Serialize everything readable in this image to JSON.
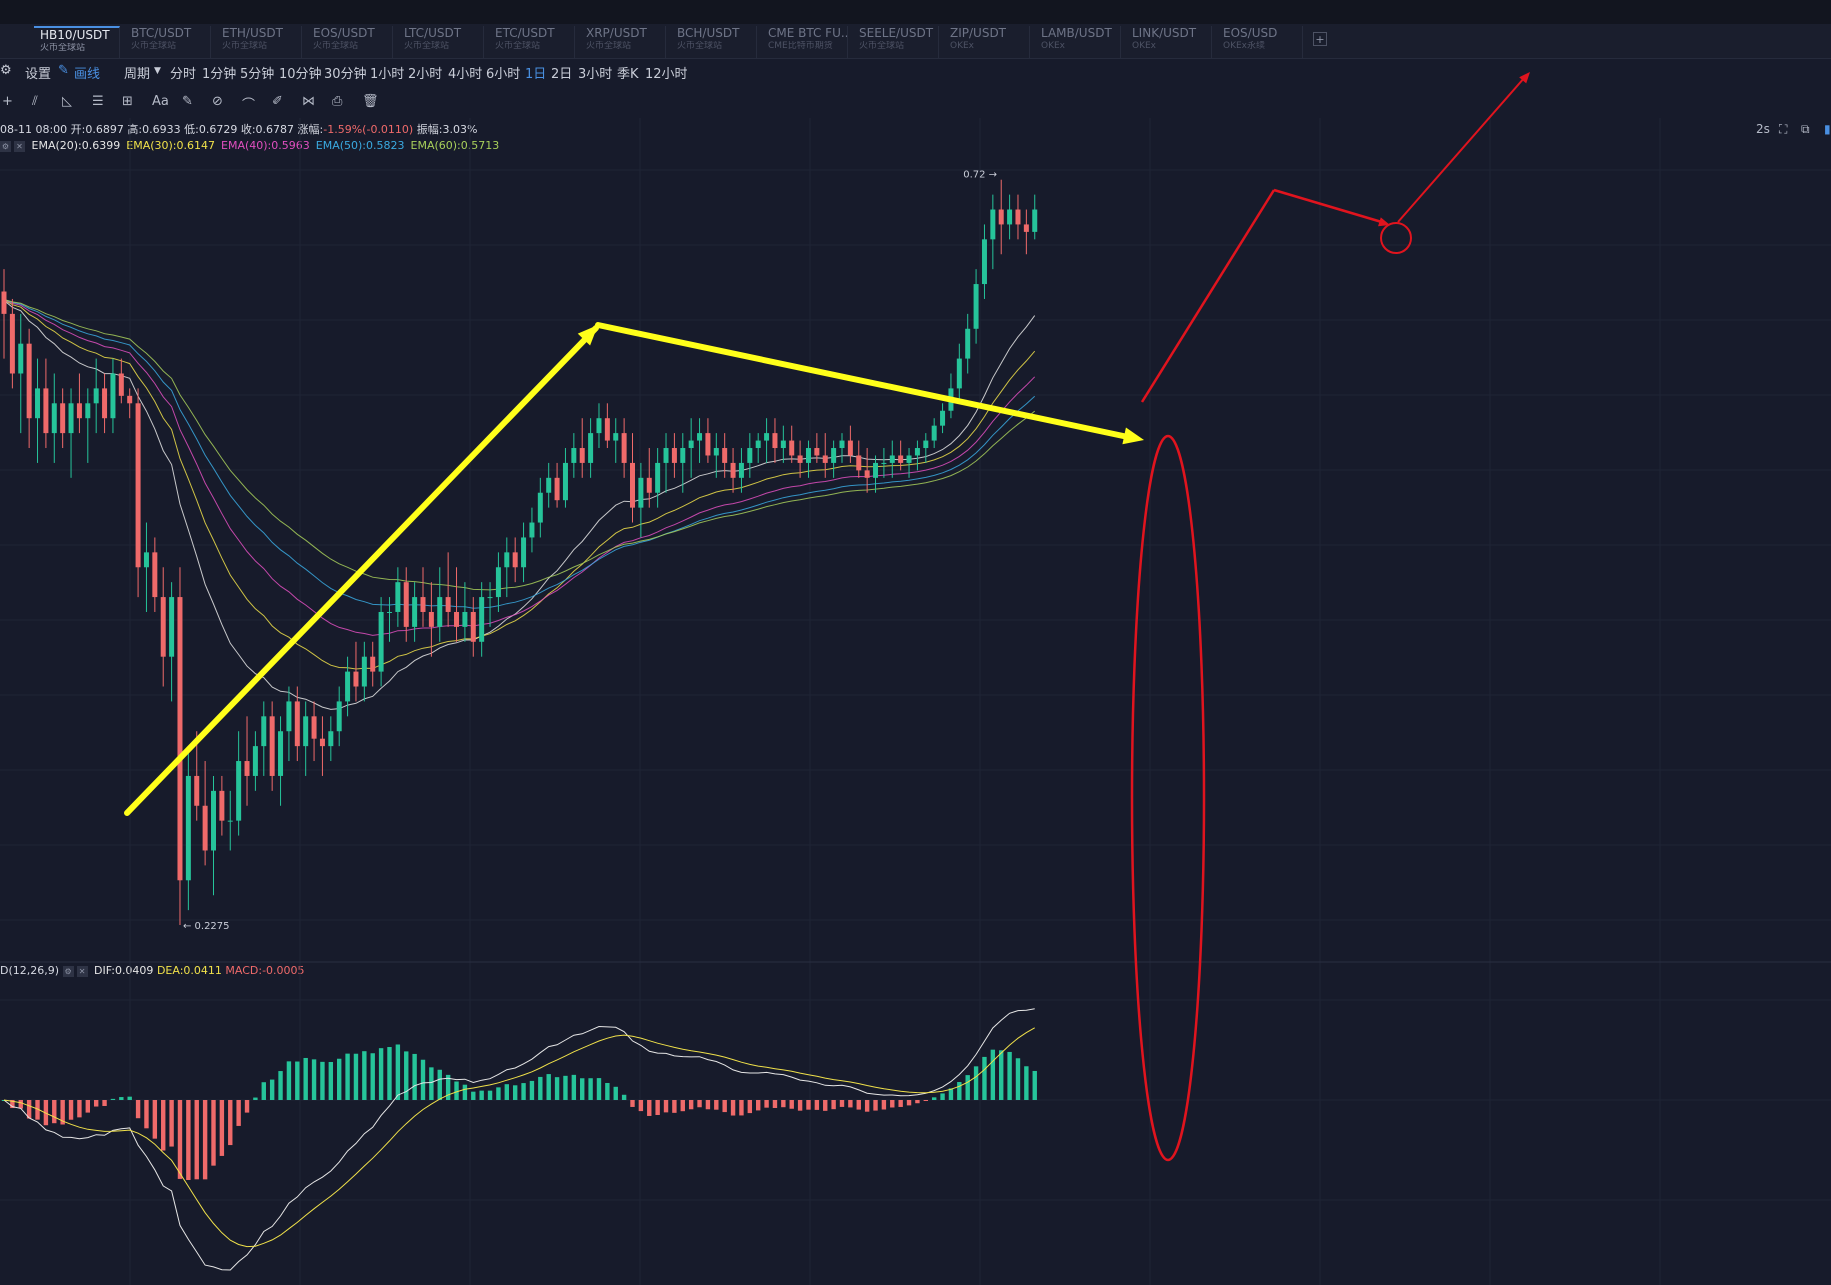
{
  "tabs": [
    {
      "symbol": "HB10/USDT",
      "source": "火币全球站",
      "active": true
    },
    {
      "symbol": "BTC/USDT",
      "source": "火币全球站",
      "active": false
    },
    {
      "symbol": "ETH/USDT",
      "source": "火币全球站",
      "active": false
    },
    {
      "symbol": "EOS/USDT",
      "source": "火币全球站",
      "active": false
    },
    {
      "symbol": "LTC/USDT",
      "source": "火币全球站",
      "active": false
    },
    {
      "symbol": "ETC/USDT",
      "source": "火币全球站",
      "active": false
    },
    {
      "symbol": "XRP/USDT",
      "source": "火币全球站",
      "active": false
    },
    {
      "symbol": "BCH/USDT",
      "source": "火币全球站",
      "active": false
    },
    {
      "symbol": "CME BTC FU...",
      "source": "CME比特币期货",
      "active": false
    },
    {
      "symbol": "SEELE/USDT",
      "source": "火币全球站",
      "active": false
    },
    {
      "symbol": "ZIP/USDT",
      "source": "OKEx",
      "active": false
    },
    {
      "symbol": "LAMB/USDT",
      "source": "OKEx",
      "active": false
    },
    {
      "symbol": "LINK/USDT",
      "source": "OKEx",
      "active": false
    },
    {
      "symbol": "EOS/USD",
      "source": "OKEx永续",
      "active": false
    }
  ],
  "toolbar": {
    "settings_label": "设置",
    "draw_label": "画线",
    "period_label": "周期",
    "periods": [
      "分时",
      "1分钟",
      "5分钟",
      "10分钟",
      "30分钟",
      "1小时",
      "2小时",
      "4小时",
      "6小时",
      "1日",
      "2日",
      "3小时",
      "季K",
      "12小时"
    ],
    "active_period": "1日",
    "right_interval": "2s"
  },
  "drawtools": [
    "+",
    "⫽",
    "◺",
    "☰",
    "⊞",
    "Aa",
    "✎",
    "⊘",
    "⌒",
    "✐",
    "⋈",
    "⎙",
    "🗑"
  ],
  "legend": {
    "date": "08-11 08:00",
    "open_label": "开:",
    "open": "0.6897",
    "high_label": "高:",
    "high": "0.6933",
    "low_label": "低:",
    "low": "0.6729",
    "close_label": "收:",
    "close": "0.6787",
    "change_label": "涨幅:",
    "change": "-1.59%(-0.0110)",
    "amp_label": "振幅:",
    "amp": "3.03%",
    "ema": [
      {
        "label": "EMA(20):0.6399",
        "color": "#e6e6e6"
      },
      {
        "label": "EMA(30):0.6147",
        "color": "#f0e14a"
      },
      {
        "label": "EMA(40):0.5963",
        "color": "#e04fbf"
      },
      {
        "label": "EMA(50):0.5823",
        "color": "#3aa9e0"
      },
      {
        "label": "EMA(60):0.5713",
        "color": "#a8cf5a"
      }
    ],
    "macd_title": "D(12,26,9)",
    "dif": "DIF:0.0409",
    "dea": "DEA:0.0411",
    "macd": "MACD:-0.0005"
  },
  "chart_data": {
    "type": "candlestick",
    "high_label": "0.72",
    "low_label": "0.2275",
    "ohlc": [
      [
        0.645,
        0.66,
        0.6,
        0.63
      ],
      [
        0.63,
        0.64,
        0.58,
        0.59
      ],
      [
        0.59,
        0.63,
        0.55,
        0.61
      ],
      [
        0.61,
        0.62,
        0.54,
        0.56
      ],
      [
        0.56,
        0.6,
        0.53,
        0.58
      ],
      [
        0.58,
        0.6,
        0.54,
        0.55
      ],
      [
        0.55,
        0.59,
        0.53,
        0.57
      ],
      [
        0.57,
        0.58,
        0.54,
        0.55
      ],
      [
        0.55,
        0.58,
        0.52,
        0.57
      ],
      [
        0.57,
        0.59,
        0.55,
        0.56
      ],
      [
        0.56,
        0.58,
        0.53,
        0.57
      ],
      [
        0.57,
        0.6,
        0.55,
        0.58
      ],
      [
        0.58,
        0.59,
        0.55,
        0.56
      ],
      [
        0.56,
        0.6,
        0.55,
        0.59
      ],
      [
        0.59,
        0.6,
        0.57,
        0.575
      ],
      [
        0.575,
        0.58,
        0.56,
        0.57
      ],
      [
        0.57,
        0.58,
        0.44,
        0.46
      ],
      [
        0.46,
        0.49,
        0.43,
        0.47
      ],
      [
        0.47,
        0.48,
        0.43,
        0.44
      ],
      [
        0.44,
        0.46,
        0.38,
        0.4
      ],
      [
        0.4,
        0.45,
        0.37,
        0.44
      ],
      [
        0.44,
        0.46,
        0.22,
        0.25
      ],
      [
        0.25,
        0.34,
        0.23,
        0.32
      ],
      [
        0.32,
        0.35,
        0.29,
        0.3
      ],
      [
        0.3,
        0.33,
        0.26,
        0.27
      ],
      [
        0.27,
        0.32,
        0.24,
        0.31
      ],
      [
        0.31,
        0.32,
        0.28,
        0.29
      ],
      [
        0.29,
        0.31,
        0.27,
        0.29
      ],
      [
        0.29,
        0.35,
        0.28,
        0.33
      ],
      [
        0.33,
        0.36,
        0.3,
        0.32
      ],
      [
        0.32,
        0.35,
        0.31,
        0.34
      ],
      [
        0.34,
        0.37,
        0.32,
        0.36
      ],
      [
        0.36,
        0.37,
        0.31,
        0.32
      ],
      [
        0.32,
        0.36,
        0.3,
        0.35
      ],
      [
        0.35,
        0.38,
        0.33,
        0.37
      ],
      [
        0.37,
        0.38,
        0.33,
        0.34
      ],
      [
        0.34,
        0.37,
        0.32,
        0.36
      ],
      [
        0.36,
        0.37,
        0.33,
        0.345
      ],
      [
        0.345,
        0.36,
        0.32,
        0.34
      ],
      [
        0.34,
        0.36,
        0.33,
        0.35
      ],
      [
        0.35,
        0.38,
        0.34,
        0.37
      ],
      [
        0.37,
        0.4,
        0.36,
        0.39
      ],
      [
        0.39,
        0.41,
        0.37,
        0.38
      ],
      [
        0.38,
        0.41,
        0.37,
        0.4
      ],
      [
        0.4,
        0.41,
        0.38,
        0.39
      ],
      [
        0.39,
        0.44,
        0.38,
        0.43
      ],
      [
        0.43,
        0.44,
        0.41,
        0.43
      ],
      [
        0.43,
        0.46,
        0.42,
        0.45
      ],
      [
        0.45,
        0.46,
        0.41,
        0.42
      ],
      [
        0.42,
        0.45,
        0.41,
        0.44
      ],
      [
        0.44,
        0.46,
        0.42,
        0.43
      ],
      [
        0.43,
        0.45,
        0.4,
        0.42
      ],
      [
        0.42,
        0.46,
        0.41,
        0.44
      ],
      [
        0.44,
        0.47,
        0.42,
        0.43
      ],
      [
        0.43,
        0.46,
        0.41,
        0.42
      ],
      [
        0.42,
        0.45,
        0.41,
        0.43
      ],
      [
        0.43,
        0.44,
        0.4,
        0.41
      ],
      [
        0.41,
        0.45,
        0.4,
        0.44
      ],
      [
        0.44,
        0.45,
        0.42,
        0.44
      ],
      [
        0.44,
        0.47,
        0.43,
        0.46
      ],
      [
        0.46,
        0.48,
        0.44,
        0.47
      ],
      [
        0.47,
        0.48,
        0.45,
        0.46
      ],
      [
        0.46,
        0.49,
        0.45,
        0.48
      ],
      [
        0.48,
        0.5,
        0.47,
        0.49
      ],
      [
        0.49,
        0.52,
        0.48,
        0.51
      ],
      [
        0.51,
        0.53,
        0.5,
        0.52
      ],
      [
        0.52,
        0.53,
        0.5,
        0.505
      ],
      [
        0.505,
        0.54,
        0.5,
        0.53
      ],
      [
        0.53,
        0.55,
        0.52,
        0.54
      ],
      [
        0.54,
        0.56,
        0.52,
        0.53
      ],
      [
        0.53,
        0.56,
        0.52,
        0.55
      ],
      [
        0.55,
        0.57,
        0.54,
        0.56
      ],
      [
        0.56,
        0.57,
        0.54,
        0.545
      ],
      [
        0.545,
        0.56,
        0.53,
        0.55
      ],
      [
        0.55,
        0.56,
        0.52,
        0.53
      ],
      [
        0.53,
        0.55,
        0.49,
        0.5
      ],
      [
        0.5,
        0.53,
        0.48,
        0.52
      ],
      [
        0.52,
        0.54,
        0.5,
        0.51
      ],
      [
        0.51,
        0.54,
        0.5,
        0.53
      ],
      [
        0.53,
        0.55,
        0.51,
        0.54
      ],
      [
        0.54,
        0.55,
        0.52,
        0.53
      ],
      [
        0.53,
        0.55,
        0.51,
        0.54
      ],
      [
        0.54,
        0.56,
        0.52,
        0.545
      ],
      [
        0.545,
        0.56,
        0.53,
        0.55
      ],
      [
        0.55,
        0.56,
        0.53,
        0.535
      ],
      [
        0.535,
        0.55,
        0.52,
        0.54
      ],
      [
        0.54,
        0.55,
        0.52,
        0.53
      ],
      [
        0.53,
        0.54,
        0.51,
        0.52
      ],
      [
        0.52,
        0.54,
        0.51,
        0.53
      ],
      [
        0.53,
        0.55,
        0.52,
        0.54
      ],
      [
        0.54,
        0.55,
        0.53,
        0.545
      ],
      [
        0.545,
        0.56,
        0.53,
        0.55
      ],
      [
        0.55,
        0.56,
        0.53,
        0.54
      ],
      [
        0.54,
        0.555,
        0.53,
        0.545
      ],
      [
        0.545,
        0.555,
        0.53,
        0.535
      ],
      [
        0.535,
        0.545,
        0.52,
        0.53
      ],
      [
        0.53,
        0.545,
        0.52,
        0.54
      ],
      [
        0.54,
        0.55,
        0.53,
        0.535
      ],
      [
        0.535,
        0.55,
        0.52,
        0.53
      ],
      [
        0.53,
        0.545,
        0.52,
        0.54
      ],
      [
        0.54,
        0.55,
        0.53,
        0.545
      ],
      [
        0.545,
        0.555,
        0.53,
        0.535
      ],
      [
        0.535,
        0.545,
        0.52,
        0.525
      ],
      [
        0.525,
        0.54,
        0.51,
        0.52
      ],
      [
        0.52,
        0.535,
        0.51,
        0.53
      ],
      [
        0.53,
        0.54,
        0.52,
        0.53
      ],
      [
        0.53,
        0.545,
        0.52,
        0.535
      ],
      [
        0.535,
        0.545,
        0.525,
        0.53
      ],
      [
        0.53,
        0.54,
        0.52,
        0.535
      ],
      [
        0.535,
        0.545,
        0.525,
        0.54
      ],
      [
        0.54,
        0.55,
        0.53,
        0.545
      ],
      [
        0.545,
        0.56,
        0.54,
        0.555
      ],
      [
        0.555,
        0.57,
        0.55,
        0.565
      ],
      [
        0.565,
        0.59,
        0.56,
        0.58
      ],
      [
        0.58,
        0.61,
        0.57,
        0.6
      ],
      [
        0.6,
        0.63,
        0.59,
        0.62
      ],
      [
        0.62,
        0.66,
        0.61,
        0.65
      ],
      [
        0.65,
        0.69,
        0.64,
        0.68
      ],
      [
        0.68,
        0.71,
        0.66,
        0.7
      ],
      [
        0.7,
        0.72,
        0.67,
        0.69
      ],
      [
        0.69,
        0.71,
        0.68,
        0.7
      ],
      [
        0.7,
        0.71,
        0.68,
        0.69
      ],
      [
        0.69,
        0.7,
        0.67,
        0.685
      ],
      [
        0.685,
        0.71,
        0.68,
        0.7
      ]
    ]
  }
}
